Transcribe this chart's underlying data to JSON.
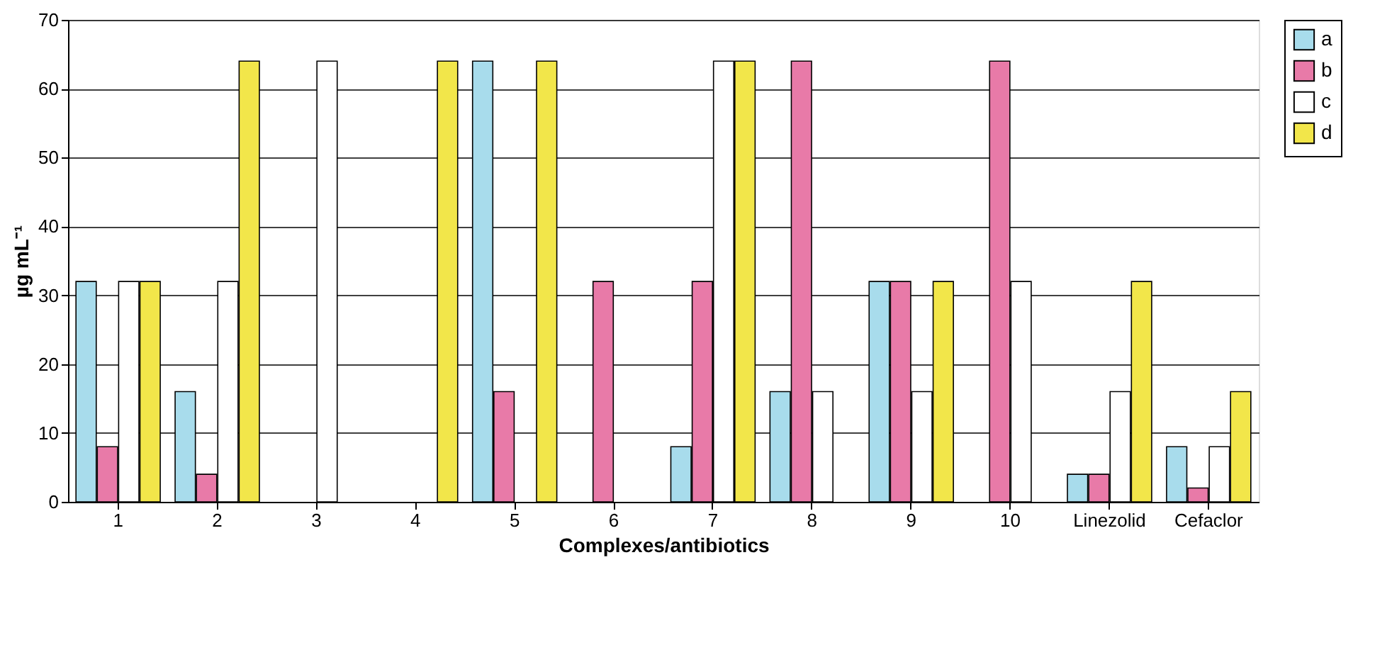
{
  "chart_data": {
    "type": "bar",
    "xlabel": "Complexes/antibiotics",
    "ylabel": "µg mL⁻¹",
    "categories": [
      "1",
      "2",
      "3",
      "4",
      "5",
      "6",
      "7",
      "8",
      "9",
      "10",
      "Linezolid",
      "Cefaclor"
    ],
    "series": [
      {
        "name": "a",
        "color": "#a8dcec",
        "values": [
          32,
          16,
          null,
          null,
          64,
          null,
          8,
          16,
          32,
          null,
          4,
          8
        ]
      },
      {
        "name": "b",
        "color": "#e87aa8",
        "values": [
          8,
          4,
          null,
          null,
          16,
          32,
          32,
          64,
          32,
          64,
          4,
          2
        ]
      },
      {
        "name": "c",
        "color": "#ffffff",
        "values": [
          32,
          32,
          64,
          null,
          null,
          null,
          64,
          16,
          16,
          32,
          16,
          8
        ]
      },
      {
        "name": "d",
        "color": "#f2e64a",
        "values": [
          32,
          64,
          null,
          64,
          64,
          null,
          64,
          null,
          32,
          null,
          32,
          16
        ]
      }
    ],
    "ylim": [
      0,
      70
    ],
    "yticks": [
      0,
      10,
      20,
      30,
      40,
      50,
      60,
      70
    ],
    "grid": "y",
    "legend": "right"
  }
}
